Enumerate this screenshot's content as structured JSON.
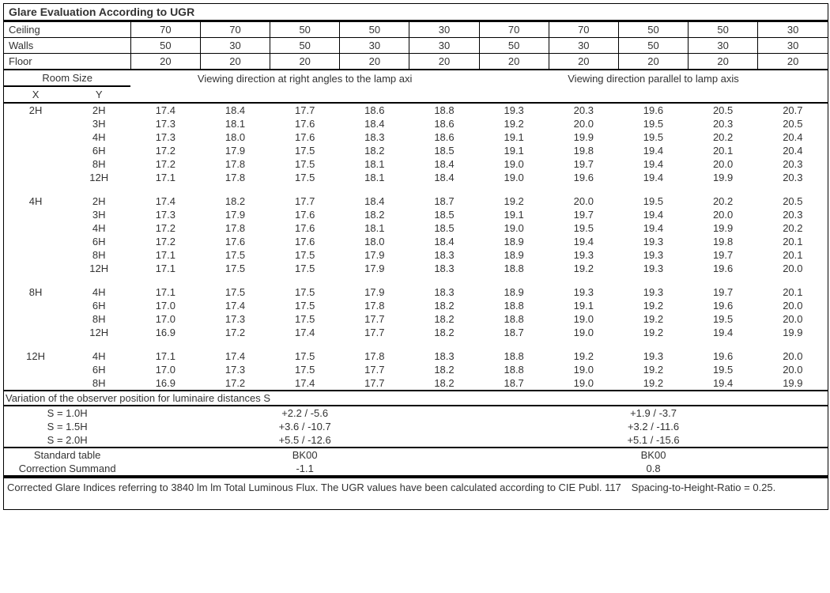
{
  "title": "Glare Evaluation According to UGR",
  "header_labels": {
    "ceiling": "Ceiling",
    "walls": "Walls",
    "floor": "Floor"
  },
  "ceiling": [
    "70",
    "70",
    "50",
    "50",
    "30",
    "70",
    "70",
    "50",
    "50",
    "30"
  ],
  "walls": [
    "50",
    "30",
    "50",
    "30",
    "30",
    "50",
    "30",
    "50",
    "30",
    "30"
  ],
  "floor": [
    "20",
    "20",
    "20",
    "20",
    "20",
    "20",
    "20",
    "20",
    "20",
    "20"
  ],
  "room_size_label": "Room Size",
  "room_x": "X",
  "room_y": "Y",
  "dir_left": "Viewing direction at right angles to the lamp axi",
  "dir_right": "Viewing direction parallel to lamp axis",
  "groups": [
    {
      "x": "2H",
      "rows": [
        {
          "y": "2H",
          "v": [
            "17.4",
            "18.4",
            "17.7",
            "18.6",
            "18.8",
            "19.3",
            "20.3",
            "19.6",
            "20.5",
            "20.7"
          ]
        },
        {
          "y": "3H",
          "v": [
            "17.3",
            "18.1",
            "17.6",
            "18.4",
            "18.6",
            "19.2",
            "20.0",
            "19.5",
            "20.3",
            "20.5"
          ]
        },
        {
          "y": "4H",
          "v": [
            "17.3",
            "18.0",
            "17.6",
            "18.3",
            "18.6",
            "19.1",
            "19.9",
            "19.5",
            "20.2",
            "20.4"
          ]
        },
        {
          "y": "6H",
          "v": [
            "17.2",
            "17.9",
            "17.5",
            "18.2",
            "18.5",
            "19.1",
            "19.8",
            "19.4",
            "20.1",
            "20.4"
          ]
        },
        {
          "y": "8H",
          "v": [
            "17.2",
            "17.8",
            "17.5",
            "18.1",
            "18.4",
            "19.0",
            "19.7",
            "19.4",
            "20.0",
            "20.3"
          ]
        },
        {
          "y": "12H",
          "v": [
            "17.1",
            "17.8",
            "17.5",
            "18.1",
            "18.4",
            "19.0",
            "19.6",
            "19.4",
            "19.9",
            "20.3"
          ]
        }
      ]
    },
    {
      "x": "4H",
      "rows": [
        {
          "y": "2H",
          "v": [
            "17.4",
            "18.2",
            "17.7",
            "18.4",
            "18.7",
            "19.2",
            "20.0",
            "19.5",
            "20.2",
            "20.5"
          ]
        },
        {
          "y": "3H",
          "v": [
            "17.3",
            "17.9",
            "17.6",
            "18.2",
            "18.5",
            "19.1",
            "19.7",
            "19.4",
            "20.0",
            "20.3"
          ]
        },
        {
          "y": "4H",
          "v": [
            "17.2",
            "17.8",
            "17.6",
            "18.1",
            "18.5",
            "19.0",
            "19.5",
            "19.4",
            "19.9",
            "20.2"
          ]
        },
        {
          "y": "6H",
          "v": [
            "17.2",
            "17.6",
            "17.6",
            "18.0",
            "18.4",
            "18.9",
            "19.4",
            "19.3",
            "19.8",
            "20.1"
          ]
        },
        {
          "y": "8H",
          "v": [
            "17.1",
            "17.5",
            "17.5",
            "17.9",
            "18.3",
            "18.9",
            "19.3",
            "19.3",
            "19.7",
            "20.1"
          ]
        },
        {
          "y": "12H",
          "v": [
            "17.1",
            "17.5",
            "17.5",
            "17.9",
            "18.3",
            "18.8",
            "19.2",
            "19.3",
            "19.6",
            "20.0"
          ]
        }
      ]
    },
    {
      "x": "8H",
      "rows": [
        {
          "y": "4H",
          "v": [
            "17.1",
            "17.5",
            "17.5",
            "17.9",
            "18.3",
            "18.9",
            "19.3",
            "19.3",
            "19.7",
            "20.1"
          ]
        },
        {
          "y": "6H",
          "v": [
            "17.0",
            "17.4",
            "17.5",
            "17.8",
            "18.2",
            "18.8",
            "19.1",
            "19.2",
            "19.6",
            "20.0"
          ]
        },
        {
          "y": "8H",
          "v": [
            "17.0",
            "17.3",
            "17.5",
            "17.7",
            "18.2",
            "18.8",
            "19.0",
            "19.2",
            "19.5",
            "20.0"
          ]
        },
        {
          "y": "12H",
          "v": [
            "16.9",
            "17.2",
            "17.4",
            "17.7",
            "18.2",
            "18.7",
            "19.0",
            "19.2",
            "19.4",
            "19.9"
          ]
        }
      ]
    },
    {
      "x": "12H",
      "rows": [
        {
          "y": "4H",
          "v": [
            "17.1",
            "17.4",
            "17.5",
            "17.8",
            "18.3",
            "18.8",
            "19.2",
            "19.3",
            "19.6",
            "20.0"
          ]
        },
        {
          "y": "6H",
          "v": [
            "17.0",
            "17.3",
            "17.5",
            "17.7",
            "18.2",
            "18.8",
            "19.0",
            "19.2",
            "19.5",
            "20.0"
          ]
        },
        {
          "y": "8H",
          "v": [
            "16.9",
            "17.2",
            "17.4",
            "17.7",
            "18.2",
            "18.7",
            "19.0",
            "19.2",
            "19.4",
            "19.9"
          ]
        }
      ]
    }
  ],
  "variation_label": "Variation of the observer position for luminaire distances S",
  "s_rows": [
    {
      "s": "S = 1.0H",
      "l": "+2.2 / -5.6",
      "r": "+1.9 / -3.7"
    },
    {
      "s": "S = 1.5H",
      "l": "+3.6 / -10.7",
      "r": "+3.2 / -11.6"
    },
    {
      "s": "S = 2.0H",
      "l": "+5.5 / -12.6",
      "r": "+5.1 / -15.6"
    }
  ],
  "std_table_label": "Standard table",
  "correction_label": "Correction Summand",
  "std_left": "BK00",
  "std_right": "BK00",
  "corr_left": "-1.1",
  "corr_right": "0.8",
  "footnote": "Corrected Glare Indices referring to 3840 lm lm Total Luminous Flux. The UGR values have been calculated according to CIE Publ. 117 Spacing-to-Height-Ratio = 0.25."
}
